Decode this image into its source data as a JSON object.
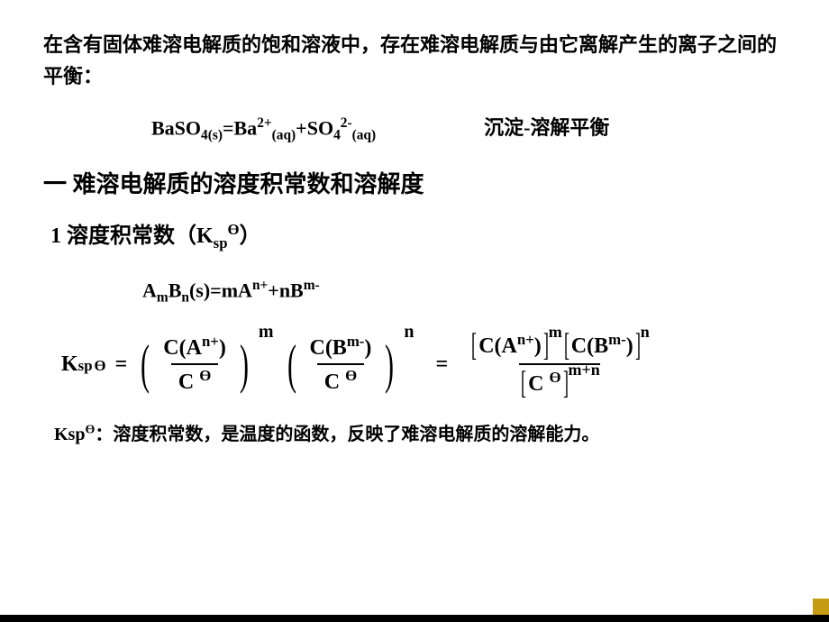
{
  "intro": "在含有固体难溶电解质的饱和溶液中，存在难溶电解质与由它离解产生的离子之间的平衡：",
  "equation1": {
    "text_html": "BaSO<sub>4(s)</sub>=Ba<sup>2+</sup><sub>(aq)</sub>+SO<sub>4</sub><sup>2-</sup><sub>(aq)</sub>",
    "label": "沉淀-溶解平衡"
  },
  "heading1": "一  难溶电解质的溶度积常数和溶解度",
  "heading2": {
    "prefix": "1  溶度积常数（",
    "symbol": "K",
    "sub": "sp",
    "sup": "Ө",
    "suffix": "）"
  },
  "equation2_html": "A<sub>m</sub>B<sub>n</sub>(s)=mA<sup>n+</sup>+nB<sup>m-</sup>",
  "ksp_formula": {
    "lhs": {
      "K": "K",
      "sub": "sp",
      "theta": "Ө",
      "eq": " = "
    },
    "term1": {
      "num_html": "C(A<sup>n+</sup>)",
      "den_html": "C <sup>Ө</sup>",
      "pow": "m"
    },
    "term2": {
      "num_html": "C(B<sup>m-</sup>)",
      "den_html": "C <sup>Ө</sup>",
      "pow": "n"
    },
    "mid_eq": "=",
    "rhs": {
      "num_a_html": "C(A<sup>n+</sup>)",
      "num_a_pow": "m",
      "num_b_html": "C(B<sup>m-</sup>)",
      "num_b_pow": "n",
      "den_html": "C <sup>Ө</sup>",
      "den_pow": "m+n"
    }
  },
  "caption": {
    "sym": "Ksp",
    "theta": "Ө",
    "text": "：溶度积常数，是温度的函数，反映了难溶电解质的溶解能力。"
  },
  "colors": {
    "text": "#000000",
    "background": "#ffffff",
    "corner": "#c69c12",
    "bottom_bar": "#000000"
  }
}
